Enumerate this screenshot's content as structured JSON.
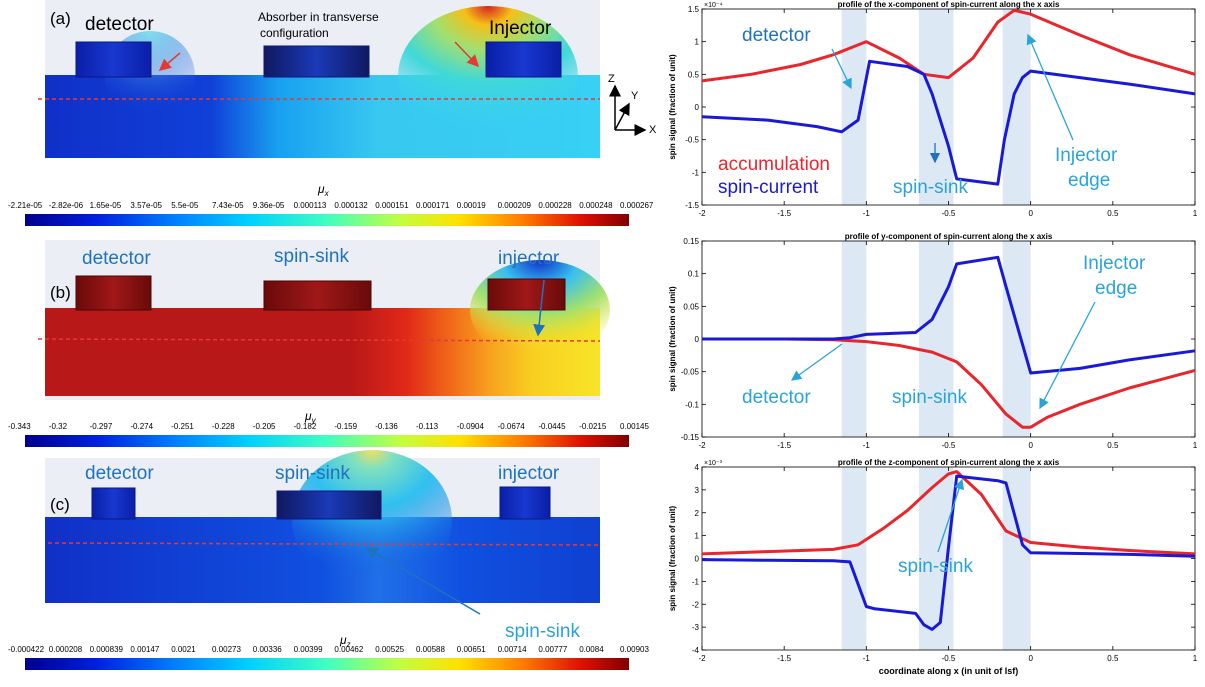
{
  "left_panels": [
    {
      "panel_label": "(a)",
      "colorbar_symbol": "μ",
      "colorbar_sub": "x",
      "colorbar_ticks": [
        "-2.21e-05",
        "-2.82e-06",
        "1.65e-05",
        "3.57e-05",
        "5.5e-05",
        "7.43e-05",
        "9.36e-05",
        "0.000113",
        "0.000132",
        "0.000151",
        "0.000171",
        "0.00019",
        "0.000209",
        "0.000228",
        "0.000248",
        "0.000267"
      ],
      "labels": {
        "detector": "detector",
        "middle": "Absorber in transverse configuration",
        "injector": "Injector"
      }
    },
    {
      "panel_label": "(b)",
      "colorbar_symbol": "μ",
      "colorbar_sub": "y",
      "colorbar_ticks": [
        "-0.343",
        "-0.32",
        "-0.297",
        "-0.274",
        "-0.251",
        "-0.228",
        "-0.205",
        "-0.182",
        "-0.159",
        "-0.136",
        "-0.113",
        "-0.0904",
        "-0.0674",
        "-0.0445",
        "-0.0215",
        "0.00145"
      ],
      "labels": {
        "detector": "detector",
        "middle": "spin-sink",
        "injector": "injector"
      }
    },
    {
      "panel_label": "(c)",
      "colorbar_symbol": "μ",
      "colorbar_sub": "z",
      "colorbar_ticks": [
        "-0.000422",
        "0.000208",
        "0.000839",
        "0.00147",
        "0.0021",
        "0.00273",
        "0.00336",
        "0.00399",
        "0.00462",
        "0.00525",
        "0.00588",
        "0.00651",
        "0.00714",
        "0.00777",
        "0.0084",
        "0.00903"
      ],
      "labels": {
        "detector": "detector",
        "middle": "spin-sink",
        "injector": "injector",
        "pointer": "spin-sink"
      }
    }
  ],
  "axes_glyph": {
    "z": "Z",
    "y": "Y",
    "x": "X"
  },
  "colors": {
    "accumulation": "#e8262b",
    "spin_current": "#1a1ad6",
    "annotation": "#2aa4d8",
    "label_blue": "#1e73be",
    "shade": "#dce8f4",
    "guide": "#e53935"
  },
  "chart_data": [
    {
      "type": "line",
      "title": "profile of the x-component of spin-current along the x axis",
      "ylabel": "spin signal (fraction of unit)",
      "xlabel": "",
      "xlim": [
        -2,
        1
      ],
      "ylim": [
        -1.5,
        1.5
      ],
      "y_exponent": "×10⁻⁴",
      "xticks": [
        "-2",
        "-1.5",
        "-1",
        "-0.5",
        "0",
        "0.5",
        "1"
      ],
      "yticks": [
        "1.5",
        "1",
        "0.5",
        "0",
        "-0.5",
        "-1",
        "-1.5"
      ],
      "shaded_x": [
        [
          -1.15,
          -1.0
        ],
        [
          -0.68,
          -0.47
        ],
        [
          -0.17,
          0.0
        ]
      ],
      "series": [
        {
          "name": "accumulation",
          "color": "#e8262b",
          "x": [
            -2,
            -1.7,
            -1.4,
            -1.2,
            -1.05,
            -1.0,
            -0.8,
            -0.65,
            -0.5,
            -0.35,
            -0.2,
            -0.1,
            0.0,
            0.3,
            0.6,
            1.0
          ],
          "y": [
            0.4,
            0.5,
            0.65,
            0.8,
            0.95,
            1.0,
            0.75,
            0.5,
            0.45,
            0.75,
            1.3,
            1.48,
            1.42,
            1.1,
            0.8,
            0.5
          ]
        },
        {
          "name": "spin-current",
          "color": "#1a1ad6",
          "x": [
            -2,
            -1.6,
            -1.3,
            -1.15,
            -1.05,
            -0.98,
            -0.75,
            -0.65,
            -0.6,
            -0.5,
            -0.45,
            -0.2,
            -0.16,
            -0.1,
            -0.05,
            0.0,
            0.3,
            0.6,
            1.0
          ],
          "y": [
            -0.15,
            -0.2,
            -0.3,
            -0.38,
            -0.2,
            0.7,
            0.62,
            0.5,
            0.2,
            -0.6,
            -1.1,
            -1.18,
            -0.5,
            0.2,
            0.45,
            0.55,
            0.45,
            0.35,
            0.2
          ]
        }
      ],
      "annotations": {
        "detector": "detector",
        "accumulation": "accumulation",
        "spin_current": "spin-current",
        "spin_sink": "spin-sink",
        "injector_edge_1": "Injector",
        "injector_edge_2": "edge"
      }
    },
    {
      "type": "line",
      "title": "profile of y-component of spin-current along the x axis",
      "ylabel": "spin signal (fraction of unit)",
      "xlabel": "",
      "xlim": [
        -2,
        1
      ],
      "ylim": [
        -0.15,
        0.15
      ],
      "xticks": [
        "-2",
        "-1.5",
        "-1",
        "-0.5",
        "0",
        "0.5",
        "1"
      ],
      "yticks": [
        "0.15",
        "0.1",
        "0.05",
        "0",
        "-0.05",
        "-0.1",
        "-0.15"
      ],
      "shaded_x": [
        [
          -1.15,
          -1.0
        ],
        [
          -0.68,
          -0.47
        ],
        [
          -0.17,
          0.0
        ]
      ],
      "series": [
        {
          "name": "accumulation",
          "color": "#e8262b",
          "x": [
            -2,
            -1.5,
            -1.2,
            -1.0,
            -0.8,
            -0.6,
            -0.45,
            -0.3,
            -0.15,
            -0.05,
            0.0,
            0.1,
            0.3,
            0.6,
            1.0
          ],
          "y": [
            0,
            0,
            -0.001,
            -0.004,
            -0.01,
            -0.02,
            -0.035,
            -0.07,
            -0.115,
            -0.135,
            -0.135,
            -0.12,
            -0.1,
            -0.075,
            -0.048
          ]
        },
        {
          "name": "spin-current",
          "color": "#1a1ad6",
          "x": [
            -2,
            -1.5,
            -1.2,
            -1.1,
            -1.0,
            -0.9,
            -0.7,
            -0.6,
            -0.5,
            -0.45,
            -0.2,
            -0.15,
            0.0,
            0.3,
            0.6,
            1.0
          ],
          "y": [
            0,
            0,
            0,
            0.002,
            0.007,
            0.008,
            0.01,
            0.03,
            0.08,
            0.115,
            0.125,
            0.08,
            -0.052,
            -0.045,
            -0.032,
            -0.018
          ]
        }
      ],
      "annotations": {
        "detector": "detector",
        "spin_sink": "spin-sink",
        "injector_edge_1": "Injector",
        "injector_edge_2": "edge"
      }
    },
    {
      "type": "line",
      "title": "profile of the z-component of spin-current along the x axis",
      "ylabel": "spin signal (fraction of unit)",
      "xlabel": "coordinate along x (in unit of lsf)",
      "xlim": [
        -2,
        1
      ],
      "ylim": [
        -4,
        4
      ],
      "y_exponent": "×10⁻³",
      "xticks": [
        "-2",
        "-1.5",
        "-1",
        "-0.5",
        "0",
        "0.5",
        "1"
      ],
      "yticks": [
        "4",
        "3",
        "2",
        "1",
        "0",
        "-1",
        "-2",
        "-3",
        "-4"
      ],
      "shaded_x": [
        [
          -1.15,
          -1.0
        ],
        [
          -0.68,
          -0.47
        ],
        [
          -0.17,
          0.0
        ]
      ],
      "series": [
        {
          "name": "accumulation",
          "color": "#e8262b",
          "x": [
            -2,
            -1.6,
            -1.2,
            -1.05,
            -0.9,
            -0.75,
            -0.6,
            -0.5,
            -0.45,
            -0.3,
            -0.15,
            0.0,
            0.3,
            0.6,
            1.0
          ],
          "y": [
            0.2,
            0.3,
            0.4,
            0.6,
            1.3,
            2.1,
            3.1,
            3.7,
            3.8,
            2.8,
            1.2,
            0.7,
            0.5,
            0.35,
            0.2
          ]
        },
        {
          "name": "spin-current",
          "color": "#1a1ad6",
          "x": [
            -2,
            -1.6,
            -1.2,
            -1.1,
            -1.0,
            -0.95,
            -0.7,
            -0.65,
            -0.6,
            -0.55,
            -0.5,
            -0.45,
            -0.2,
            -0.15,
            -0.05,
            0.0,
            0.3,
            0.6,
            1.0
          ],
          "y": [
            -0.05,
            -0.08,
            -0.1,
            -0.15,
            -2.1,
            -2.2,
            -2.4,
            -2.9,
            -3.1,
            -2.8,
            0.5,
            3.6,
            3.4,
            3.3,
            0.6,
            0.25,
            0.22,
            0.18,
            0.1
          ]
        }
      ],
      "annotations": {
        "spin_sink": "spin-sink"
      }
    }
  ]
}
